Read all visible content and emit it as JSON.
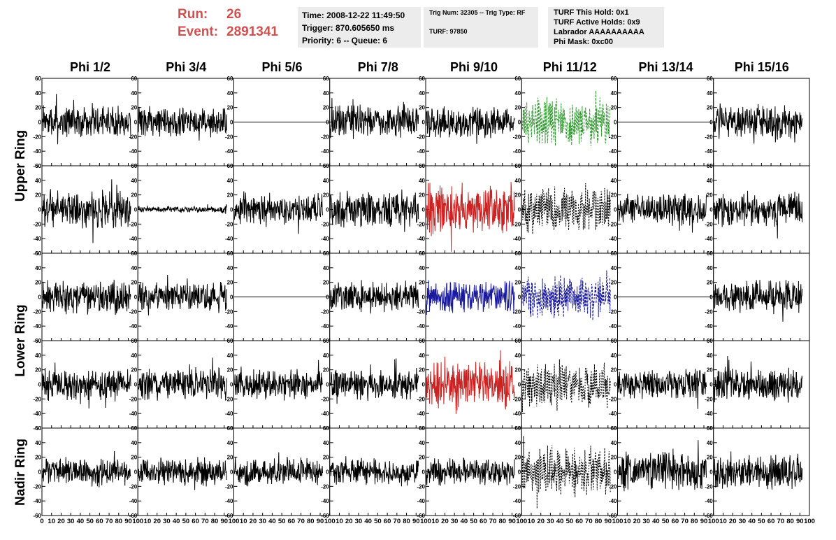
{
  "header": {
    "run_label": "Run:",
    "run_value": "26",
    "event_label": "Event:",
    "event_value": "2891341",
    "time_line": "Time: 2008-12-22 11:49:50",
    "trigger_line": "Trigger: 870.605650 ms",
    "priority_line": "Priority: 6 -- Queue: 6",
    "trig_line": "Trig Num: 32305 -- Trig Type: RF",
    "turf_line": "TURF: 97850",
    "turf_hold_line": "TURF This Hold: 0x1",
    "turf_active_line": "TURF Active Holds: 0x9",
    "labrador_line": "Labrador AAAAAAAAAA",
    "phi_mask_line": "Phi Mask: 0xc00"
  },
  "columns": [
    "Phi 1/2",
    "Phi 3/4",
    "Phi 5/6",
    "Phi 7/8",
    "Phi 9/10",
    "Phi 11/12",
    "Phi 13/14",
    "Phi 15/16"
  ],
  "row_labels": [
    {
      "text": "Upper Ring",
      "rows": [
        0,
        1
      ]
    },
    {
      "text": "Lower Ring",
      "rows": [
        2,
        3
      ]
    },
    {
      "text": "Nadir Ring",
      "rows": [
        4
      ]
    }
  ],
  "chart_data": {
    "type": "line",
    "description_of_grid": "5 rows x 8 columns of waveform panels",
    "x_range": [
      0,
      100
    ],
    "y_range": [
      -60,
      60
    ],
    "y_ticks": [
      -60,
      -40,
      -20,
      0,
      20,
      40,
      60
    ],
    "x_ticks": [
      0,
      10,
      20,
      30,
      40,
      50,
      60,
      70,
      80,
      90,
      100
    ],
    "colors": {
      "black": "#000000",
      "red": "#cc2222",
      "blue": "#1a1a9c",
      "green": "#2f9a2f"
    },
    "panels": [
      [
        {
          "style": "solid",
          "color": "black",
          "amp": 15
        },
        {
          "style": "solid",
          "color": "black",
          "amp": 14
        },
        {
          "style": "flat",
          "color": "black",
          "amp": 0
        },
        {
          "style": "solid",
          "color": "black",
          "amp": 16
        },
        {
          "style": "solid",
          "color": "black",
          "amp": 15
        },
        {
          "style": "dashed",
          "color": "green",
          "amp": 22
        },
        {
          "style": "flat",
          "color": "black",
          "amp": 0
        },
        {
          "style": "solid",
          "color": "black",
          "amp": 16
        }
      ],
      [
        {
          "style": "solid",
          "color": "black",
          "amp": 18
        },
        {
          "style": "solid",
          "color": "black",
          "amp": 3
        },
        {
          "style": "solid",
          "color": "black",
          "amp": 15
        },
        {
          "style": "solid",
          "color": "black",
          "amp": 17
        },
        {
          "style": "solid",
          "color": "red",
          "amp": 24
        },
        {
          "style": "dotted",
          "color": "black",
          "amp": 22
        },
        {
          "style": "solid",
          "color": "black",
          "amp": 15
        },
        {
          "style": "solid",
          "color": "black",
          "amp": 16
        }
      ],
      [
        {
          "style": "solid",
          "color": "black",
          "amp": 16
        },
        {
          "style": "solid",
          "color": "black",
          "amp": 14
        },
        {
          "style": "flat",
          "color": "black",
          "amp": 0
        },
        {
          "style": "solid",
          "color": "black",
          "amp": 15
        },
        {
          "style": "solid",
          "color": "blue",
          "amp": 16
        },
        {
          "style": "dashed",
          "color": "blue",
          "amp": 20
        },
        {
          "style": "flat",
          "color": "black",
          "amp": 0
        },
        {
          "style": "solid",
          "color": "black",
          "amp": 16
        }
      ],
      [
        {
          "style": "solid",
          "color": "black",
          "amp": 15
        },
        {
          "style": "solid",
          "color": "black",
          "amp": 15
        },
        {
          "style": "solid",
          "color": "black",
          "amp": 14
        },
        {
          "style": "solid",
          "color": "black",
          "amp": 15
        },
        {
          "style": "solid",
          "color": "red",
          "amp": 22
        },
        {
          "style": "dotted",
          "color": "black",
          "amp": 22
        },
        {
          "style": "solid",
          "color": "black",
          "amp": 15
        },
        {
          "style": "solid",
          "color": "black",
          "amp": 16
        }
      ],
      [
        {
          "style": "solid",
          "color": "black",
          "amp": 13
        },
        {
          "style": "solid",
          "color": "black",
          "amp": 13
        },
        {
          "style": "solid",
          "color": "black",
          "amp": 13
        },
        {
          "style": "solid",
          "color": "black",
          "amp": 13
        },
        {
          "style": "solid",
          "color": "black",
          "amp": 13
        },
        {
          "style": "dotted",
          "color": "black",
          "amp": 24
        },
        {
          "style": "solid",
          "color": "black",
          "amp": 18
        },
        {
          "style": "solid",
          "color": "black",
          "amp": 16
        }
      ]
    ]
  }
}
